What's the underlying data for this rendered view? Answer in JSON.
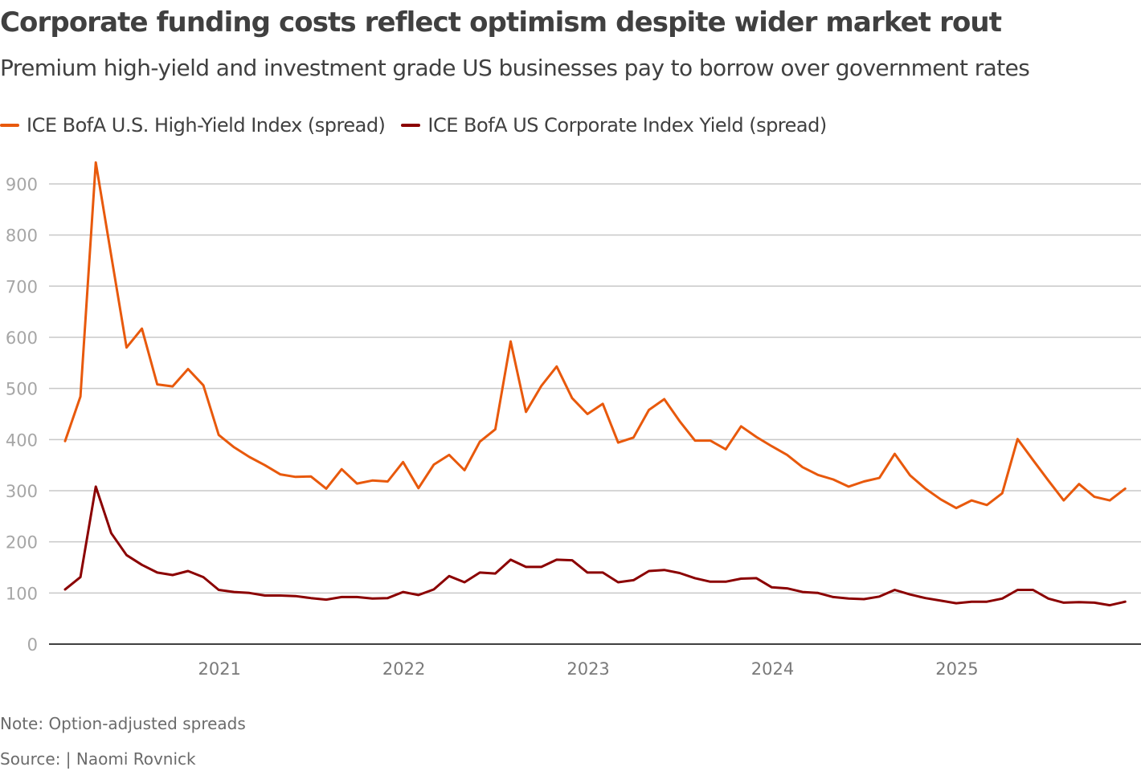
{
  "header": {
    "title": "Corporate funding costs reflect optimism despite wider market rout",
    "subtitle": "Premium high-yield and investment grade US businesses pay to borrow over government rates"
  },
  "footer": {
    "note": "Note: Option-adjusted spreads",
    "source": "Source:  | Naomi Rovnick"
  },
  "chart_data": {
    "type": "line",
    "title": "Corporate funding costs reflect optimism despite wider market rout",
    "subtitle": "Premium high-yield and investment grade US businesses pay to borrow over government rates",
    "xlabel": "",
    "ylabel": "",
    "ylim": [
      0,
      950
    ],
    "yticks": [
      0,
      100,
      200,
      300,
      400,
      500,
      600,
      700,
      800,
      900
    ],
    "x_start": "2020-03",
    "x_end": "2025-12",
    "x_frequency": "monthly",
    "x_tick_labels": [
      "2021",
      "2022",
      "2023",
      "2024",
      "2025"
    ],
    "grid": true,
    "legend_position": "top-left",
    "series": [
      {
        "name": "ICE BofA U.S. High-Yield Index (spread)",
        "color": "#e8590c",
        "values": [
          397,
          484,
          942,
          760,
          580,
          617,
          508,
          504,
          538,
          506,
          409,
          385,
          366,
          350,
          332,
          327,
          328,
          304,
          342,
          314,
          320,
          318,
          356,
          305,
          351,
          370,
          340,
          396,
          420,
          592,
          454,
          505,
          543,
          481,
          450,
          470,
          394,
          404,
          458,
          479,
          436,
          398,
          398,
          381,
          426,
          405,
          387,
          370,
          346,
          331,
          322,
          308,
          318,
          325,
          372,
          330,
          304,
          283,
          266,
          281,
          272,
          295,
          401,
          360,
          320,
          281,
          313,
          288,
          281,
          304
        ]
      },
      {
        "name": "ICE BofA US Corporate Index Yield (spread)",
        "color": "#8b0000",
        "values": [
          107,
          131,
          308,
          217,
          174,
          155,
          140,
          135,
          143,
          131,
          106,
          102,
          100,
          95,
          95,
          94,
          90,
          87,
          92,
          92,
          89,
          90,
          102,
          96,
          107,
          133,
          121,
          140,
          138,
          165,
          151,
          151,
          165,
          164,
          140,
          140,
          121,
          125,
          143,
          145,
          139,
          129,
          122,
          122,
          128,
          129,
          111,
          109,
          102,
          100,
          92,
          89,
          88,
          93,
          106,
          97,
          90,
          85,
          80,
          83,
          83,
          89,
          106,
          106,
          89,
          81,
          82,
          81,
          76,
          83
        ]
      }
    ]
  }
}
